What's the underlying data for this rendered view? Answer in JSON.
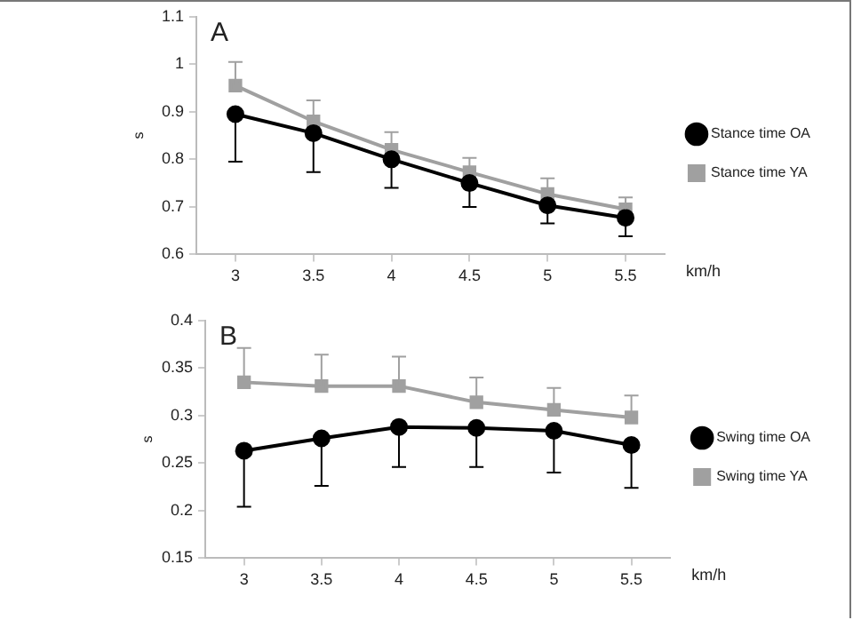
{
  "chart_data": [
    {
      "type": "line",
      "annotations": [
        "A"
      ],
      "xlabel": "km/h",
      "ylabel": "s",
      "categories": [
        "3",
        "3.5",
        "4",
        "4.5",
        "5",
        "5.5"
      ],
      "series": [
        {
          "name": "Stance time OA",
          "color": "#000000",
          "marker": "circle",
          "values": [
            0.895,
            0.855,
            0.8,
            0.75,
            0.703,
            0.677
          ],
          "errors": [
            [
              0.795,
              0.895
            ],
            [
              0.773,
              0.855
            ],
            [
              0.74,
              0.8
            ],
            [
              0.7,
              0.75
            ],
            [
              0.665,
              0.703
            ],
            [
              0.638,
              0.677
            ]
          ]
        },
        {
          "name": "Stance time YA",
          "color": "#a0a0a0",
          "marker": "square",
          "values": [
            0.955,
            0.88,
            0.82,
            0.773,
            0.727,
            0.695
          ],
          "errors": [
            [
              0.955,
              1.005
            ],
            [
              0.88,
              0.924
            ],
            [
              0.82,
              0.857
            ],
            [
              0.773,
              0.803
            ],
            [
              0.727,
              0.76
            ],
            [
              0.695,
              0.72
            ]
          ]
        }
      ],
      "ylim": [
        0.6,
        1.1
      ],
      "yticks": [
        0.6,
        0.7,
        0.8,
        0.9,
        1,
        1.1
      ],
      "grid": false,
      "legend": "right"
    },
    {
      "type": "line",
      "annotations": [
        "B"
      ],
      "xlabel": "km/h",
      "ylabel": "s",
      "categories": [
        "3",
        "3.5",
        "4",
        "4.5",
        "5",
        "5.5"
      ],
      "series": [
        {
          "name": "Swing time OA",
          "color": "#000000",
          "marker": "circle",
          "values": [
            0.263,
            0.276,
            0.288,
            0.287,
            0.284,
            0.269
          ],
          "errors": [
            [
              0.204,
              0.263
            ],
            [
              0.226,
              0.276
            ],
            [
              0.246,
              0.288
            ],
            [
              0.246,
              0.287
            ],
            [
              0.24,
              0.284
            ],
            [
              0.224,
              0.269
            ]
          ]
        },
        {
          "name": "Swing time YA",
          "color": "#a0a0a0",
          "marker": "square",
          "values": [
            0.335,
            0.331,
            0.331,
            0.314,
            0.306,
            0.298
          ],
          "errors": [
            [
              0.335,
              0.371
            ],
            [
              0.331,
              0.364
            ],
            [
              0.331,
              0.362
            ],
            [
              0.314,
              0.34
            ],
            [
              0.306,
              0.329
            ],
            [
              0.298,
              0.321
            ]
          ]
        }
      ],
      "ylim": [
        0.15,
        0.4
      ],
      "yticks": [
        0.15,
        0.2,
        0.25,
        0.3,
        0.35,
        0.4
      ],
      "grid": false,
      "legend": "right"
    }
  ]
}
